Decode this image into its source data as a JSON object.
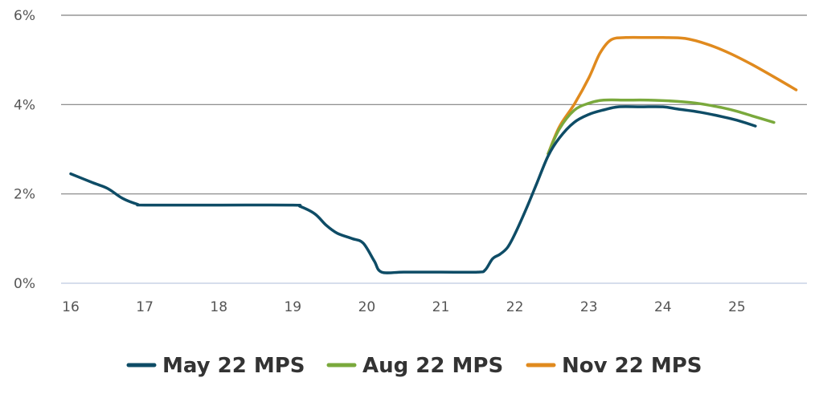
{
  "chart_data": {
    "type": "line",
    "title": "",
    "xlabel": "",
    "ylabel": "",
    "xlim": [
      16,
      25.9
    ],
    "ylim": [
      0,
      6
    ],
    "x_ticks": [
      "16",
      "17",
      "18",
      "19",
      "20",
      "21",
      "22",
      "23",
      "24",
      "25"
    ],
    "y_ticks": [
      "0%",
      "2%",
      "4%",
      "6%"
    ],
    "grid": true,
    "legend_position": "bottom",
    "series": [
      {
        "name": "May 22 MPS",
        "color": "#0e4c66",
        "points": [
          [
            16.0,
            2.45
          ],
          [
            16.3,
            2.25
          ],
          [
            16.5,
            2.12
          ],
          [
            16.7,
            1.9
          ],
          [
            16.9,
            1.77
          ],
          [
            17.0,
            1.75
          ],
          [
            18.0,
            1.75
          ],
          [
            19.0,
            1.75
          ],
          [
            19.1,
            1.72
          ],
          [
            19.3,
            1.55
          ],
          [
            19.45,
            1.3
          ],
          [
            19.6,
            1.12
          ],
          [
            19.8,
            1.0
          ],
          [
            19.95,
            0.9
          ],
          [
            20.1,
            0.5
          ],
          [
            20.2,
            0.25
          ],
          [
            20.5,
            0.25
          ],
          [
            21.0,
            0.25
          ],
          [
            21.5,
            0.25
          ],
          [
            21.6,
            0.3
          ],
          [
            21.7,
            0.55
          ],
          [
            21.8,
            0.65
          ],
          [
            21.9,
            0.8
          ],
          [
            22.0,
            1.1
          ],
          [
            22.15,
            1.65
          ],
          [
            22.3,
            2.25
          ],
          [
            22.45,
            2.85
          ],
          [
            22.6,
            3.25
          ],
          [
            22.8,
            3.6
          ],
          [
            23.0,
            3.78
          ],
          [
            23.2,
            3.88
          ],
          [
            23.4,
            3.95
          ],
          [
            23.7,
            3.95
          ],
          [
            24.0,
            3.95
          ],
          [
            24.2,
            3.9
          ],
          [
            24.5,
            3.83
          ],
          [
            24.8,
            3.73
          ],
          [
            25.0,
            3.65
          ],
          [
            25.25,
            3.52
          ]
        ]
      },
      {
        "name": "Aug 22 MPS",
        "color": "#7aa93c",
        "points": [
          [
            22.45,
            2.9
          ],
          [
            22.6,
            3.45
          ],
          [
            22.8,
            3.87
          ],
          [
            23.0,
            4.03
          ],
          [
            23.2,
            4.1
          ],
          [
            23.5,
            4.1
          ],
          [
            23.8,
            4.1
          ],
          [
            24.2,
            4.07
          ],
          [
            24.5,
            4.02
          ],
          [
            24.8,
            3.93
          ],
          [
            25.0,
            3.85
          ],
          [
            25.2,
            3.75
          ],
          [
            25.5,
            3.6
          ]
        ]
      },
      {
        "name": "Nov 22 MPS",
        "color": "#e08a1e",
        "points": [
          [
            22.45,
            2.9
          ],
          [
            22.6,
            3.5
          ],
          [
            22.8,
            4.0
          ],
          [
            23.0,
            4.6
          ],
          [
            23.15,
            5.15
          ],
          [
            23.3,
            5.45
          ],
          [
            23.5,
            5.5
          ],
          [
            23.8,
            5.5
          ],
          [
            24.0,
            5.5
          ],
          [
            24.3,
            5.48
          ],
          [
            24.6,
            5.35
          ],
          [
            24.9,
            5.15
          ],
          [
            25.2,
            4.9
          ],
          [
            25.5,
            4.62
          ],
          [
            25.8,
            4.33
          ]
        ]
      }
    ]
  }
}
